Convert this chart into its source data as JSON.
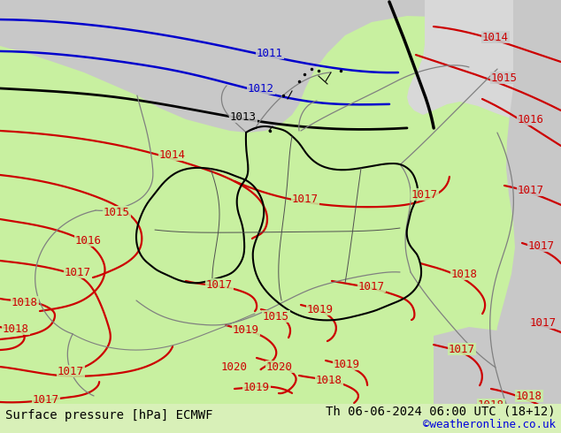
{
  "title_left": "Surface pressure [hPa] ECMWF",
  "title_right": "Th 06-06-2024 06:00 UTC (18+12)",
  "credit": "©weatheronline.co.uk",
  "figsize": [
    6.34,
    4.9
  ],
  "dpi": 100,
  "footer_fontsize": 10,
  "credit_fontsize": 9,
  "credit_color": "#0000dd",
  "label_fontsize": 9,
  "bg_green_light": "#c8f0a0",
  "bg_green_mid": "#b0e080",
  "bg_gray": "#c8c8c8",
  "bg_gray2": "#d8d8d8",
  "col_blue": "#0000cc",
  "col_black": "#000000",
  "col_red": "#cc0000",
  "col_gray_border": "#808080",
  "col_gray_border2": "#404040"
}
